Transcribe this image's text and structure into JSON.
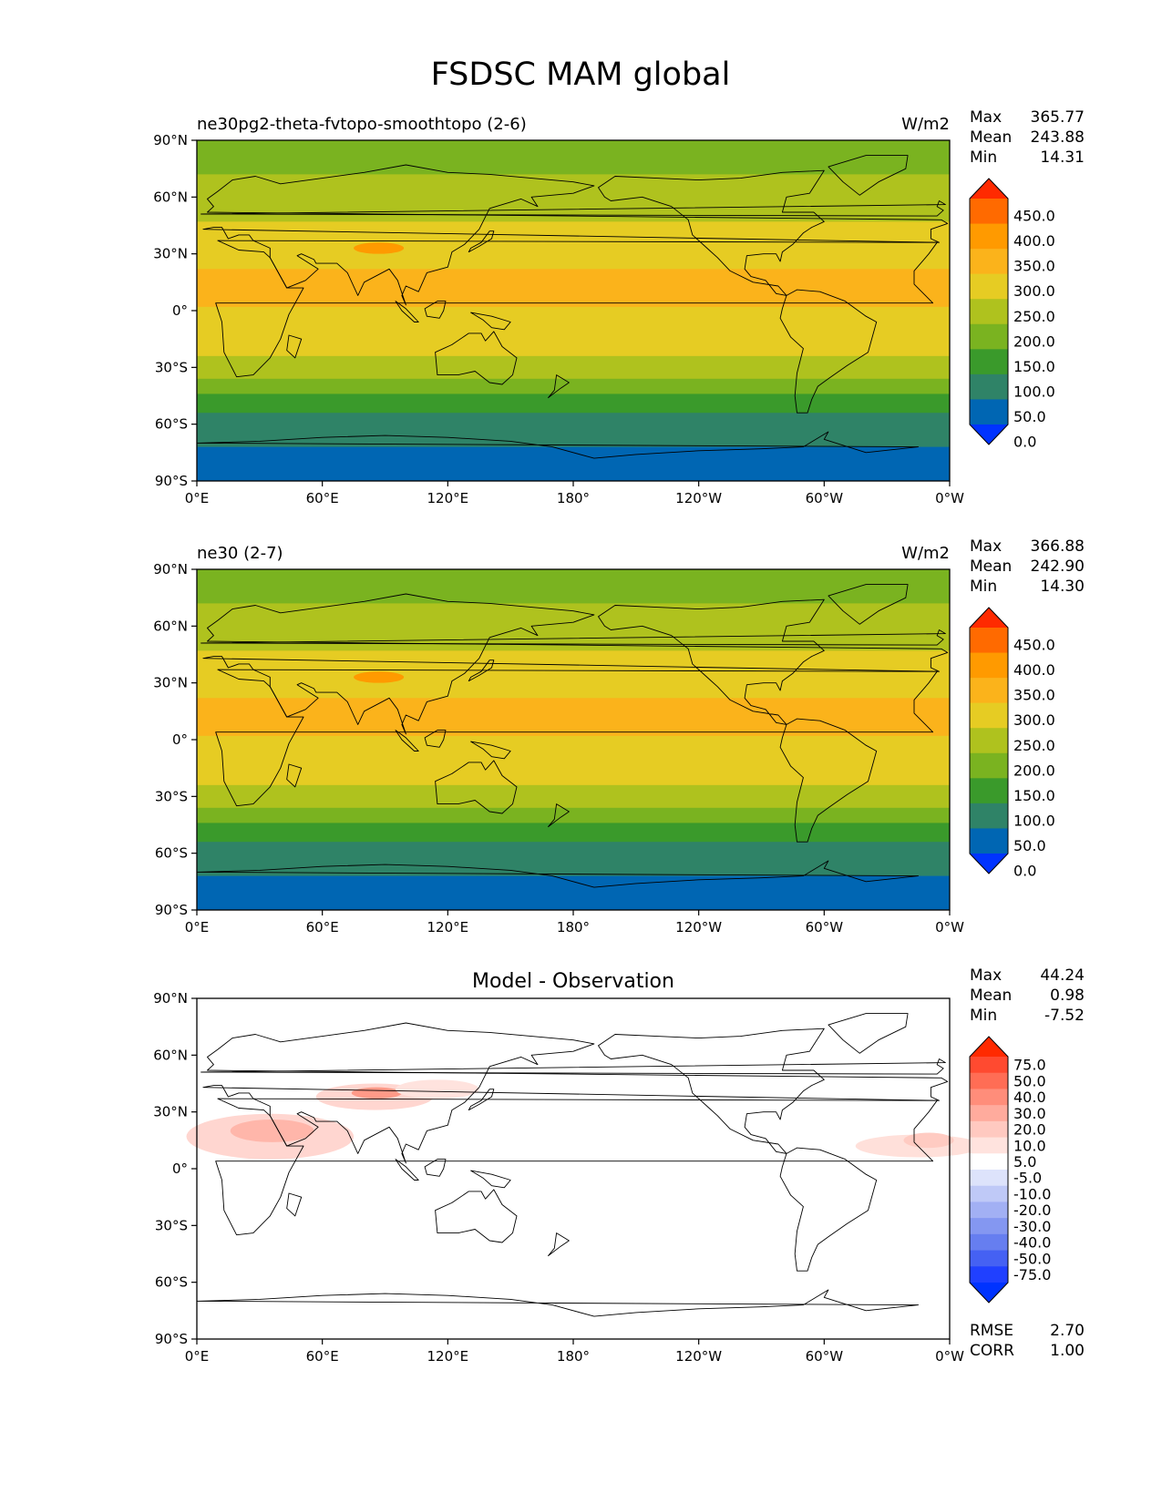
{
  "figure": {
    "title": "FSDSC MAM global"
  },
  "axes": {
    "lat_ticks": [
      "90°N",
      "60°N",
      "30°N",
      "0°",
      "30°S",
      "60°S",
      "90°S"
    ],
    "lon_ticks": [
      "0°E",
      "60°E",
      "120°E",
      "180°",
      "120°W",
      "60°W",
      "0°W"
    ]
  },
  "panels": [
    {
      "id": "test",
      "left_title": "ne30pg2-theta-fvtopo-smoothtopo (2-6)",
      "right_title": "W/m2",
      "stats": [
        {
          "label": "Max",
          "value": "365.77"
        },
        {
          "label": "Mean",
          "value": "243.88"
        },
        {
          "label": "Min",
          "value": "14.31"
        }
      ],
      "colorbar_labels": [
        "450.0",
        "400.0",
        "350.0",
        "300.0",
        "250.0",
        "200.0",
        "150.0",
        "100.0",
        "50.0",
        "0.0"
      ]
    },
    {
      "id": "reference",
      "left_title": "ne30 (2-7)",
      "right_title": "W/m2",
      "stats": [
        {
          "label": "Max",
          "value": "366.88"
        },
        {
          "label": "Mean",
          "value": "242.90"
        },
        {
          "label": "Min",
          "value": "14.30"
        }
      ],
      "colorbar_labels": [
        "450.0",
        "400.0",
        "350.0",
        "300.0",
        "250.0",
        "200.0",
        "150.0",
        "100.0",
        "50.0",
        "0.0"
      ]
    },
    {
      "id": "diff",
      "center_title": "Model - Observation",
      "stats": [
        {
          "label": "Max",
          "value": "44.24"
        },
        {
          "label": "Mean",
          "value": "0.98"
        },
        {
          "label": "Min",
          "value": "-7.52"
        }
      ],
      "colorbar_labels": [
        "75.0",
        "50.0",
        "40.0",
        "30.0",
        "20.0",
        "10.0",
        "5.0",
        "-5.0",
        "-10.0",
        "-20.0",
        "-30.0",
        "-40.0",
        "-50.0",
        "-75.0"
      ],
      "metrics": [
        {
          "label": "RMSE",
          "value": "2.70"
        },
        {
          "label": "CORR",
          "value": "1.00"
        }
      ]
    }
  ],
  "colors": {
    "field_bands": [
      {
        "lat_top": 90,
        "lat_bottom": 72,
        "color": "#7ab320"
      },
      {
        "lat_top": 72,
        "lat_bottom": 47,
        "color": "#afc21e"
      },
      {
        "lat_top": 47,
        "lat_bottom": 22,
        "color": "#e6cc23"
      },
      {
        "lat_top": 22,
        "lat_bottom": 2,
        "color": "#fbb31b"
      },
      {
        "lat_top": 2,
        "lat_bottom": -24,
        "color": "#e6cc23"
      },
      {
        "lat_top": -24,
        "lat_bottom": -36,
        "color": "#afc21e"
      },
      {
        "lat_top": -36,
        "lat_bottom": -44,
        "color": "#7ab320"
      },
      {
        "lat_top": -44,
        "lat_bottom": -54,
        "color": "#3a9a2b"
      },
      {
        "lat_top": -54,
        "lat_bottom": -72,
        "color": "#2f8367"
      },
      {
        "lat_top": -72,
        "lat_bottom": -90,
        "color": "#0066b3"
      }
    ],
    "field_colorbar": [
      "#ff2a00",
      "#ff6a00",
      "#ff9a00",
      "#fbb31b",
      "#e6cc23",
      "#afc21e",
      "#7ab320",
      "#3a9a2b",
      "#2f8367",
      "#0066b3",
      "#0033ff"
    ],
    "diff_colorbar": [
      "#ff2a00",
      "#ff4a30",
      "#ff6d55",
      "#ff8d7a",
      "#ffab9d",
      "#ffc9c0",
      "#ffe3de",
      "#ffffff",
      "#dde3fb",
      "#bfc9f7",
      "#a2b0f4",
      "#8497f1",
      "#667ef0",
      "#4561f3",
      "#2040ff",
      "#0033ff"
    ],
    "land_outline": "#000000"
  }
}
